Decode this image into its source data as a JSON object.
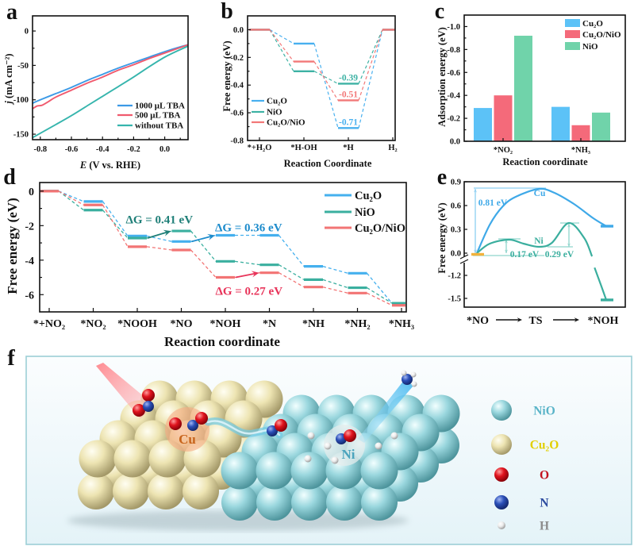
{
  "panel_labels": {
    "a": "a",
    "b": "b",
    "c": "c",
    "d": "d",
    "e": "e",
    "f": "f"
  },
  "chart_data": [
    {
      "panel": "a",
      "type": "line",
      "title": "",
      "xlabel_symbol": "E",
      "xlabel_rest": " (V vs. RHE)",
      "ylabel_symbol": "j",
      "ylabel_rest": " (mA cm⁻²)",
      "xlim": [
        -0.85,
        0.15
      ],
      "ylim": [
        -158,
        22
      ],
      "grid": false,
      "legend": "bottom-right",
      "xticks": [
        -0.8,
        -0.6,
        -0.4,
        -0.2,
        0.0
      ],
      "xtick_labels": [
        "-0.8",
        "-0.6",
        "-0.4",
        "-0.2",
        "0.0"
      ],
      "yticks": [
        0,
        -50,
        -100,
        -150
      ],
      "ytick_labels": [
        "0",
        "-50",
        "-100",
        "-150"
      ],
      "series": [
        {
          "name": "1000 μL TBA",
          "color": "#3c9ae6",
          "points": [
            [
              -0.85,
              -105
            ],
            [
              -0.8,
              -100
            ],
            [
              -0.7,
              -91
            ],
            [
              -0.6,
              -82
            ],
            [
              -0.5,
              -72
            ],
            [
              -0.4,
              -63
            ],
            [
              -0.3,
              -54
            ],
            [
              -0.2,
              -46
            ],
            [
              -0.1,
              -38
            ],
            [
              0.0,
              -30
            ],
            [
              0.1,
              -23
            ],
            [
              0.15,
              -20
            ]
          ]
        },
        {
          "name": "500 μL TBA",
          "color": "#f05a6e",
          "points": [
            [
              -0.85,
              -113
            ],
            [
              -0.82,
              -109
            ],
            [
              -0.79,
              -108
            ],
            [
              -0.75,
              -103
            ],
            [
              -0.7,
              -96
            ],
            [
              -0.6,
              -86
            ],
            [
              -0.5,
              -76
            ],
            [
              -0.4,
              -67
            ],
            [
              -0.3,
              -57
            ],
            [
              -0.2,
              -49
            ],
            [
              -0.1,
              -40
            ],
            [
              0.0,
              -32
            ],
            [
              0.1,
              -24
            ],
            [
              0.15,
              -20
            ]
          ]
        },
        {
          "name": "without TBA",
          "color": "#36b5ad",
          "points": [
            [
              -0.85,
              -155
            ],
            [
              -0.7,
              -136
            ],
            [
              -0.6,
              -123
            ],
            [
              -0.5,
              -109
            ],
            [
              -0.4,
              -95
            ],
            [
              -0.3,
              -81
            ],
            [
              -0.2,
              -67
            ],
            [
              -0.1,
              -52
            ],
            [
              0.0,
              -38
            ],
            [
              0.1,
              -27
            ],
            [
              0.15,
              -22
            ]
          ]
        }
      ]
    },
    {
      "panel": "b",
      "type": "line",
      "subtype": "free-energy-diagram",
      "title": "",
      "xlabel": "Reaction Coordinate",
      "ylabel": "Free energy (eV)",
      "categories": [
        "*+H₂O",
        "*H-OH",
        "*H",
        "H₂"
      ],
      "ylim": [
        -0.8,
        0.1
      ],
      "grid": false,
      "legend": "bottom-left",
      "yticks": [
        0,
        -0.2,
        -0.4,
        -0.6,
        -0.8
      ],
      "ytick_labels": [
        "0.0",
        "-0.2",
        "-0.4",
        "-0.6",
        "-0.8"
      ],
      "series": [
        {
          "name": "Cu₂O",
          "color": "#48b0ef",
          "values": [
            0,
            -0.1,
            -0.71,
            0
          ]
        },
        {
          "name": "NiO",
          "color": "#3db2a4",
          "values": [
            0,
            -0.3,
            -0.39,
            0
          ]
        },
        {
          "name": "Cu₂O/NiO",
          "color": "#f27878",
          "values": [
            0,
            -0.23,
            -0.51,
            0
          ]
        }
      ],
      "annotations": [
        {
          "text": "-0.39",
          "series": 1,
          "category": 2
        },
        {
          "text": "-0.51",
          "series": 2,
          "category": 2
        },
        {
          "text": "-0.71",
          "series": 0,
          "category": 2
        }
      ]
    },
    {
      "panel": "c",
      "type": "bar",
      "title": "",
      "xlabel": "Reaction coordinate",
      "ylabel": "Adsorption energy (eV)",
      "categories": [
        "*NO₂",
        "*NH₃"
      ],
      "ylim": [
        0,
        -1.1
      ],
      "grid": false,
      "legend": "top-right",
      "yticks": [
        -1.0,
        -0.8,
        -0.6,
        -0.4,
        -0.2,
        0.0
      ],
      "ytick_labels": [
        "-1.0",
        "-0.8",
        "-0.6",
        "-0.4",
        "-0.2",
        "0.0"
      ],
      "series": [
        {
          "name": "Cu₂O",
          "color": "#5cc2f7",
          "values": [
            -0.29,
            -0.3
          ]
        },
        {
          "name": "Cu₂O/NiO",
          "color": "#f46a7a",
          "values": [
            -0.4,
            -0.14
          ]
        },
        {
          "name": "NiO",
          "color": "#70d3aa",
          "values": [
            -0.92,
            -0.25
          ]
        }
      ]
    },
    {
      "panel": "d",
      "type": "line",
      "subtype": "free-energy-diagram",
      "title": "",
      "xlabel": "Reaction coordinate",
      "ylabel": "Free energy (eV)",
      "categories": [
        "*+NO₂",
        "*NO₂",
        "*NOOH",
        "*NO",
        "*NOH",
        "*N",
        "*NH",
        "*NH₂",
        "*NH₃"
      ],
      "ylim": [
        -7,
        0.5
      ],
      "grid": false,
      "legend": "top-right",
      "yticks": [
        0,
        -2,
        -4,
        -6
      ],
      "ytick_labels": [
        "0",
        "-2",
        "-4",
        "-6"
      ],
      "series": [
        {
          "name": "Cu₂O",
          "color": "#45b0ee",
          "values": [
            0,
            -0.6,
            -2.6,
            -2.92,
            -2.56,
            -2.56,
            -4.36,
            -4.76,
            -6.5
          ]
        },
        {
          "name": "NiO",
          "color": "#3aaf9f",
          "values": [
            0,
            -1.1,
            -2.72,
            -2.31,
            -4.07,
            -4.27,
            -5.13,
            -5.6,
            -6.5
          ]
        },
        {
          "name": "Cu₂O/NiO",
          "color": "#f27474",
          "values": [
            0,
            -0.8,
            -3.22,
            -3.41,
            -5.0,
            -4.73,
            -5.56,
            -5.91,
            -6.62
          ]
        }
      ],
      "annotations": [
        {
          "text": "ΔG = 0.41 eV",
          "series": 1,
          "from": 2,
          "to": 3,
          "color": "#1f7f78"
        },
        {
          "text": "ΔG = 0.36 eV",
          "series": 0,
          "from": 3,
          "to": 4,
          "color": "#1e8ccc"
        },
        {
          "text": "ΔG = 0.27 eV",
          "series": 2,
          "from": 4,
          "to": 5,
          "color": "#e8345a"
        }
      ]
    },
    {
      "panel": "e",
      "type": "line",
      "subtype": "reaction-barrier",
      "title": "",
      "ylabel": "Free energy (eV)",
      "x_states": [
        "*NO",
        "TS",
        "*NOH"
      ],
      "x_note": "reaction progress 0 (*NO) to 1 (*NOH)",
      "ylim": [
        -1.6,
        0.9
      ],
      "axis_break": [
        -1.2,
        0.0
      ],
      "grid": false,
      "yticks": [
        0.9,
        0.6,
        0.3,
        0.0,
        -1.2,
        -1.5
      ],
      "ytick_labels": [
        "0.9",
        "0.6",
        "0.3",
        "0.0",
        "-1.2",
        "-1.5"
      ],
      "series": [
        {
          "name": "Cu",
          "color": "#3fa9e8",
          "points": [
            [
              0,
              0
            ],
            [
              0.1,
              0.36
            ],
            [
              0.2,
              0.59
            ],
            [
              0.3,
              0.71
            ],
            [
              0.48,
              0.81
            ],
            [
              0.6,
              0.76
            ],
            [
              0.75,
              0.62
            ],
            [
              0.9,
              0.44
            ],
            [
              1.0,
              0.34
            ]
          ]
        },
        {
          "name": "Ni",
          "color": "#3aae9e",
          "points": [
            [
              0,
              0
            ],
            [
              0.1,
              0.12
            ],
            [
              0.25,
              0.17
            ],
            [
              0.36,
              0.12
            ],
            [
              0.48,
              0.08
            ],
            [
              0.58,
              0.13
            ],
            [
              0.71,
              0.38
            ],
            [
              0.83,
              0.19
            ],
            [
              0.89,
              -0.04
            ],
            [
              0.91,
              -1.1
            ],
            [
              0.96,
              -1.33
            ],
            [
              1.0,
              -1.52
            ]
          ]
        }
      ],
      "levels": [
        {
          "state": "*NO",
          "value": -0.015,
          "color": "#f2b23c"
        },
        {
          "state": "*NOH",
          "series": 0,
          "value": 0.34
        },
        {
          "state": "*NOH",
          "series": 1,
          "value": -1.52
        }
      ],
      "annotations": [
        {
          "text": "0.81 eV",
          "series": 0,
          "from": 0,
          "to": 0.81
        },
        {
          "text": "0.17 eV",
          "series": 1,
          "from": 0,
          "to": 0.17
        },
        {
          "text": "0.29 eV",
          "series": 1,
          "from": 0.08,
          "to": 0.37
        }
      ]
    }
  ],
  "illustration": {
    "site_labels": {
      "cu": "Cu",
      "ni": "Ni"
    },
    "legend": [
      {
        "label": "NiO",
        "color": "#5ab4c8",
        "atom": "nio"
      },
      {
        "label": "Cu₂O",
        "color": "#e2cf00",
        "atom": "cu2o"
      },
      {
        "label": "O",
        "color": "#c2111d",
        "atom": "o"
      },
      {
        "label": "N",
        "color": "#2c4b9f",
        "atom": "n"
      },
      {
        "label": "H",
        "color": "#8c8c8c",
        "atom": "h"
      }
    ]
  }
}
